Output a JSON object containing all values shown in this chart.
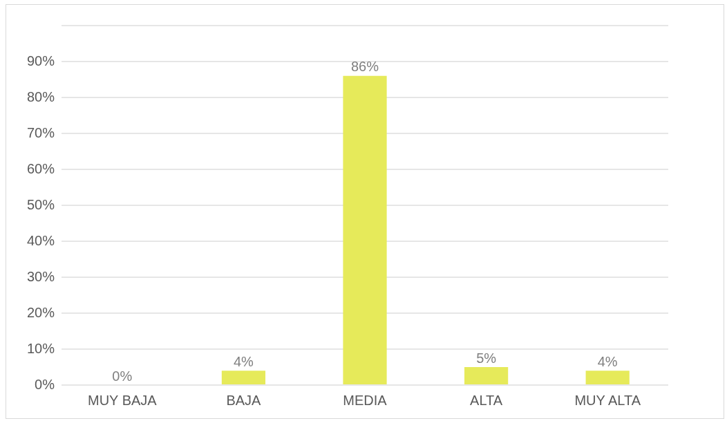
{
  "chart_data": {
    "type": "bar",
    "categories": [
      "MUY BAJA",
      "BAJA",
      "MEDIA",
      "ALTA",
      "MUY ALTA"
    ],
    "values": [
      0,
      4,
      86,
      5,
      4
    ],
    "value_labels": [
      "0%",
      "4%",
      "86%",
      "5%",
      "4%"
    ],
    "color": "#e6ea5a",
    "ylim": [
      0,
      100
    ],
    "yticks": [
      {
        "value": 0,
        "label": "0%"
      },
      {
        "value": 10,
        "label": "10%"
      },
      {
        "value": 20,
        "label": "20%"
      },
      {
        "value": 30,
        "label": "30%"
      },
      {
        "value": 40,
        "label": "40%"
      },
      {
        "value": 50,
        "label": "50%"
      },
      {
        "value": 60,
        "label": "60%"
      },
      {
        "value": 70,
        "label": "70%"
      },
      {
        "value": 80,
        "label": "80%"
      },
      {
        "value": 90,
        "label": "90%"
      },
      {
        "value": 100,
        "label": null
      }
    ],
    "grid": "y",
    "legend": false
  }
}
